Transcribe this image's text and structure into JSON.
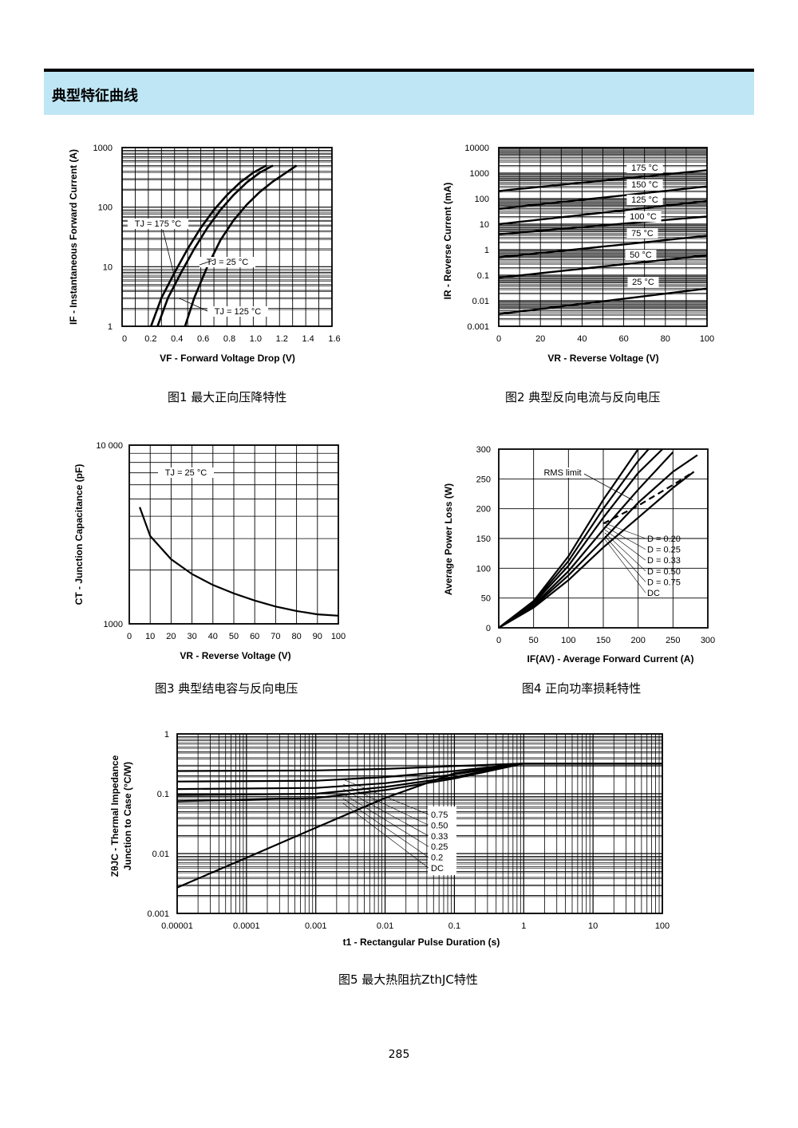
{
  "section_title": "典型特征曲线",
  "page_number": "285",
  "figures": {
    "fig1": {
      "caption": "图1  最大正向压降特性",
      "ylabel_html": "I<tspan font-size='8' dy='3'>F</tspan><tspan dy='-3'> - Instantaneous Forward Current (A)</tspan>",
      "ylabel": "IF - Instantaneous Forward Current (A)",
      "xlabel": "VF - Forward Voltage Drop (V)",
      "labels": [
        "TJ = 175 °C",
        "TJ = 25 °C",
        "TJ = 125 °C"
      ],
      "xticks": [
        "0",
        "0.2",
        "0.4",
        "0.6",
        "0.8",
        "1.0",
        "1.2",
        "1.4",
        "1.6"
      ],
      "yticks": [
        "1",
        "10",
        "100",
        "1000"
      ]
    },
    "fig2": {
      "caption": "图2  典型反向电流与反向电压",
      "ylabel": "IR - Reverse Current (mA)",
      "xlabel": "VR - Reverse Voltage (V)",
      "labels": [
        "175 °C",
        "150 °C",
        "125 °C",
        "100 °C",
        "75 °C",
        "50 °C",
        "25 °C"
      ],
      "xticks": [
        "0",
        "20",
        "40",
        "60",
        "80",
        "100"
      ],
      "yticks": [
        "0.001",
        "0.01",
        "0.1",
        "1",
        "10",
        "100",
        "1000",
        "10000"
      ]
    },
    "fig3": {
      "caption": "图3  典型结电容与反向电压",
      "ylabel": "CT - Junction Capacitance (pF)",
      "xlabel": "VR - Reverse Voltage (V)",
      "labels": [
        "TJ = 25 °C"
      ],
      "xticks": [
        "0",
        "10",
        "20",
        "30",
        "40",
        "50",
        "60",
        "70",
        "80",
        "90",
        "100"
      ],
      "yticks": [
        "1000",
        "10 000"
      ]
    },
    "fig4": {
      "caption": "图4  正向功率损耗特性",
      "ylabel": "Average Power Loss (W)",
      "xlabel": "IF(AV) - Average Forward Current (A)",
      "labels": [
        "RMS limit",
        "D = 0.20",
        "D = 0.25",
        "D = 0.33",
        "D = 0.50",
        "D = 0.75",
        "DC"
      ],
      "xticks": [
        "0",
        "50",
        "100",
        "150",
        "200",
        "250",
        "300"
      ],
      "yticks": [
        "0",
        "50",
        "100",
        "150",
        "200",
        "250",
        "300"
      ]
    },
    "fig5": {
      "caption": "图5  最大热阻抗ZthJC特性",
      "ylabel1": "ZθJC - Thermal Impedance",
      "ylabel2": "Junction to Case (°C/W)",
      "xlabel": "t1 - Rectangular Pulse Duration (s)",
      "labels": [
        "0.75",
        "0.50",
        "0.33",
        "0.25",
        "0.2",
        "DC"
      ],
      "xticks": [
        "0.00001",
        "0.0001",
        "0.001",
        "0.01",
        "0.1",
        "1",
        "10",
        "100"
      ],
      "yticks": [
        "0.001",
        "0.01",
        "0.1",
        "1"
      ]
    }
  },
  "chart_data": [
    {
      "type": "line",
      "title": "",
      "xlabel": "VF - Forward Voltage Drop (V)",
      "ylabel": "IF - Instantaneous Forward Current (A)",
      "xlim": [
        0,
        1.6
      ],
      "ylim": [
        1,
        1000
      ],
      "yscale": "log",
      "grid": true,
      "series": [
        {
          "name": "TJ = 175 °C",
          "x": [
            0.22,
            0.3,
            0.4,
            0.5,
            0.6,
            0.7,
            0.8,
            0.9,
            1.0,
            1.1
          ],
          "y": [
            1,
            3,
            8,
            20,
            45,
            90,
            160,
            260,
            380,
            500
          ]
        },
        {
          "name": "TJ = 125 °C",
          "x": [
            0.27,
            0.35,
            0.45,
            0.55,
            0.65,
            0.75,
            0.85,
            0.95,
            1.05,
            1.15
          ],
          "y": [
            1,
            3,
            8,
            20,
            45,
            90,
            160,
            260,
            380,
            500
          ]
        },
        {
          "name": "TJ = 25 °C",
          "x": [
            0.48,
            0.55,
            0.65,
            0.75,
            0.85,
            0.95,
            1.05,
            1.15,
            1.25,
            1.33
          ],
          "y": [
            1,
            3,
            10,
            28,
            60,
            110,
            180,
            270,
            380,
            500
          ]
        }
      ]
    },
    {
      "type": "line",
      "title": "",
      "xlabel": "VR - Reverse Voltage (V)",
      "ylabel": "IR - Reverse Current (mA)",
      "xlim": [
        0,
        100
      ],
      "ylim": [
        0.001,
        10000
      ],
      "yscale": "log",
      "grid": true,
      "series": [
        {
          "name": "175 °C",
          "x": [
            0,
            100
          ],
          "y": [
            200,
            1300
          ]
        },
        {
          "name": "150 °C",
          "x": [
            0,
            100
          ],
          "y": [
            40,
            300
          ]
        },
        {
          "name": "125 °C",
          "x": [
            0,
            100
          ],
          "y": [
            10,
            80
          ]
        },
        {
          "name": "100 °C",
          "x": [
            0,
            100
          ],
          "y": [
            4,
            20
          ]
        },
        {
          "name": "75 °C",
          "x": [
            0,
            100
          ],
          "y": [
            0.5,
            3.5
          ]
        },
        {
          "name": "50 °C",
          "x": [
            0,
            100
          ],
          "y": [
            0.08,
            0.6
          ]
        },
        {
          "name": "25 °C",
          "x": [
            0,
            100
          ],
          "y": [
            0.003,
            0.03
          ]
        }
      ]
    },
    {
      "type": "line",
      "title": "",
      "xlabel": "VR - Reverse Voltage (V)",
      "ylabel": "CT - Junction Capacitance (pF)",
      "xlim": [
        0,
        100
      ],
      "ylim": [
        1000,
        10000
      ],
      "yscale": "log",
      "grid": true,
      "series": [
        {
          "name": "TJ = 25 °C",
          "x": [
            5,
            10,
            20,
            30,
            40,
            50,
            60,
            70,
            80,
            90,
            100
          ],
          "y": [
            4500,
            3100,
            2300,
            1900,
            1650,
            1480,
            1350,
            1250,
            1180,
            1130,
            1110
          ]
        }
      ]
    },
    {
      "type": "line",
      "title": "",
      "xlabel": "IF(AV) - Average Forward Current (A)",
      "ylabel": "Average Power Loss (W)",
      "xlim": [
        0,
        300
      ],
      "ylim": [
        0,
        300
      ],
      "grid": true,
      "series": [
        {
          "name": "D = 0.20",
          "x": [
            0,
            50,
            100,
            150,
            200
          ],
          "y": [
            0,
            45,
            120,
            215,
            300
          ]
        },
        {
          "name": "D = 0.25",
          "x": [
            0,
            50,
            100,
            150,
            200,
            215
          ],
          "y": [
            0,
            43,
            112,
            200,
            280,
            300
          ]
        },
        {
          "name": "D = 0.33",
          "x": [
            0,
            50,
            100,
            150,
            200,
            235
          ],
          "y": [
            0,
            41,
            104,
            185,
            260,
            300
          ]
        },
        {
          "name": "D = 0.50",
          "x": [
            0,
            50,
            100,
            150,
            200,
            250
          ],
          "y": [
            0,
            38,
            95,
            165,
            232,
            295
          ]
        },
        {
          "name": "D = 0.75",
          "x": [
            0,
            50,
            100,
            150,
            200,
            250,
            285
          ],
          "y": [
            0,
            36,
            88,
            148,
            210,
            262,
            290
          ]
        },
        {
          "name": "DC",
          "x": [
            0,
            50,
            100,
            150,
            200,
            250,
            280
          ],
          "y": [
            0,
            34,
            80,
            135,
            185,
            235,
            262
          ]
        },
        {
          "name": "RMS limit",
          "x": [
            150,
            200,
            250,
            280
          ],
          "y": [
            175,
            205,
            240,
            262
          ]
        }
      ]
    },
    {
      "type": "line",
      "title": "",
      "xlabel": "t1 - Rectangular Pulse Duration (s)",
      "ylabel": "ZθJC - Thermal Impedance Junction to Case (°C/W)",
      "xlim": [
        1e-05,
        100
      ],
      "ylim": [
        0.001,
        1
      ],
      "xscale": "log",
      "yscale": "log",
      "grid": true,
      "series": [
        {
          "name": "0.75",
          "x": [
            1e-05,
            0.001,
            0.01,
            0.1,
            1,
            100
          ],
          "y": [
            0.24,
            0.245,
            0.26,
            0.29,
            0.32,
            0.32
          ]
        },
        {
          "name": "0.50",
          "x": [
            1e-05,
            0.001,
            0.01,
            0.1,
            1,
            100
          ],
          "y": [
            0.16,
            0.165,
            0.19,
            0.24,
            0.32,
            0.32
          ]
        },
        {
          "name": "0.33",
          "x": [
            1e-05,
            0.001,
            0.01,
            0.1,
            1,
            100
          ],
          "y": [
            0.12,
            0.125,
            0.15,
            0.21,
            0.32,
            0.32
          ]
        },
        {
          "name": "0.25",
          "x": [
            1e-05,
            0.001,
            0.01,
            0.1,
            1,
            100
          ],
          "y": [
            0.095,
            0.1,
            0.13,
            0.19,
            0.32,
            0.32
          ]
        },
        {
          "name": "0.2",
          "x": [
            1e-05,
            0.001,
            0.01,
            0.1,
            1,
            100
          ],
          "y": [
            0.075,
            0.085,
            0.115,
            0.18,
            0.32,
            0.32
          ]
        },
        {
          "name": "DC",
          "x": [
            1e-05,
            0.0001,
            0.001,
            0.01,
            0.1,
            1,
            100
          ],
          "y": [
            0.0027,
            0.0085,
            0.027,
            0.085,
            0.22,
            0.32,
            0.32
          ]
        }
      ]
    }
  ]
}
